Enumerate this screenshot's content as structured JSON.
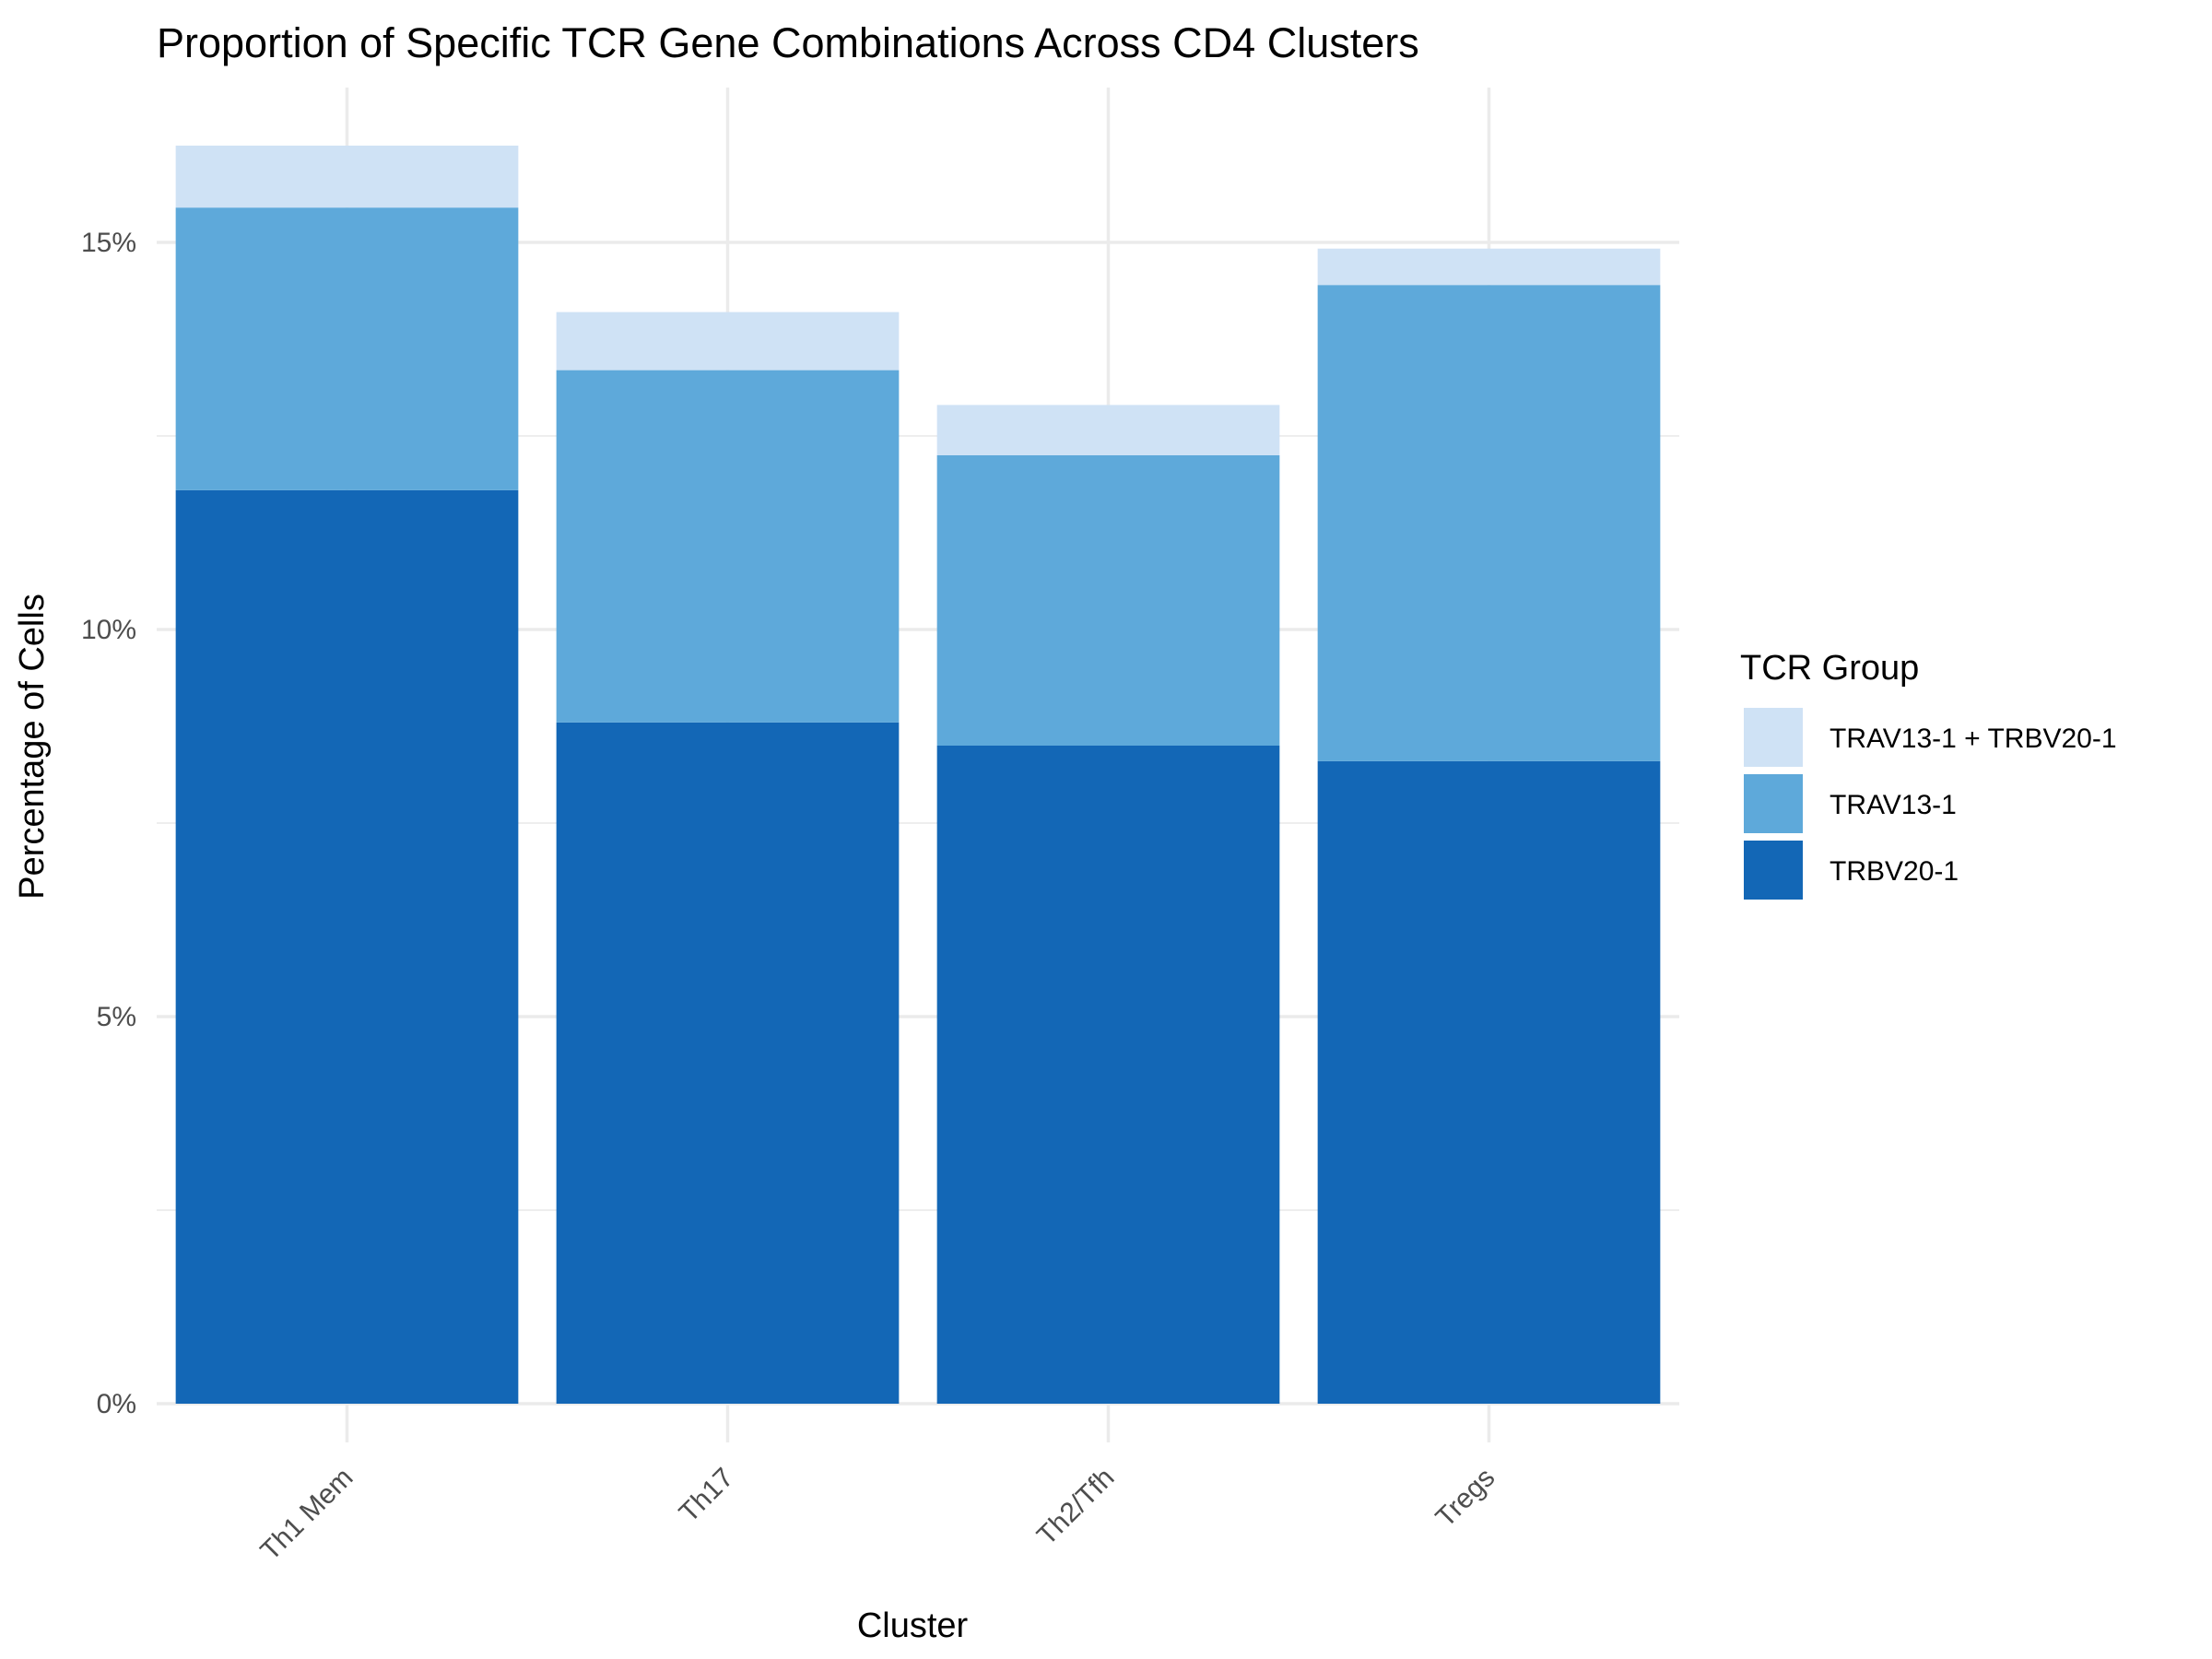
{
  "chart_data": {
    "type": "bar",
    "stacked": true,
    "title": "Proportion of Specific TCR Gene Combinations Across CD4 Clusters",
    "xlabel": "Cluster",
    "ylabel": "Percentage of Cells",
    "categories": [
      "Th1 Mem",
      "Th17",
      "Th2/Tfh",
      "Tregs"
    ],
    "series": [
      {
        "name": "TRBV20-1",
        "color": "#1367b6",
        "values": [
          11.8,
          8.8,
          8.5,
          8.3
        ]
      },
      {
        "name": "TRAV13-1",
        "color": "#5ea9da",
        "values": [
          3.65,
          4.55,
          3.75,
          6.15
        ]
      },
      {
        "name": "TRAV13-1 + TRBV20-1",
        "color": "#cfe2f5",
        "values": [
          0.8,
          0.75,
          0.65,
          0.47
        ]
      }
    ],
    "legend": {
      "title": "TCR Group",
      "position": "right",
      "order": [
        "TRAV13-1 + TRBV20-1",
        "TRAV13-1",
        "TRBV20-1"
      ]
    },
    "ylim": [
      -0.5,
      17.0
    ],
    "yticks": [
      0,
      5,
      10,
      15
    ],
    "ytick_labels": [
      "0%",
      "5%",
      "10%",
      "15%"
    ],
    "grid": true
  }
}
